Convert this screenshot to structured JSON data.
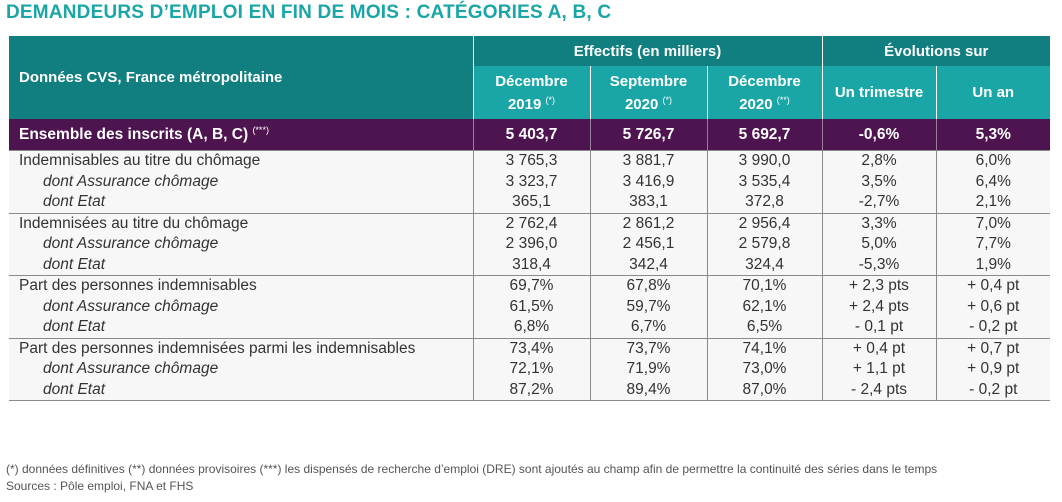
{
  "title": "DEMANDEURS D’EMPLOI EN FIN DE MOIS : CATÉGORIES A, B, C",
  "header": {
    "row_label": "Données CVS, France métropolitaine",
    "group1": "Effectifs (en milliers)",
    "group2": "Évolutions sur",
    "cols": [
      {
        "line1": "Décembre",
        "line2": "2019",
        "sup": "(*)"
      },
      {
        "line1": "Septembre",
        "line2": "2020",
        "sup": "(*)"
      },
      {
        "line1": "Décembre",
        "line2": "2020",
        "sup": "(**)"
      },
      {
        "line1": "Un trimestre",
        "line2": "",
        "sup": ""
      },
      {
        "line1": "Un an",
        "line2": "",
        "sup": ""
      }
    ]
  },
  "ensemble": {
    "label": "Ensemble des inscrits (A, B, C)",
    "sup": "(***)",
    "values": [
      "5 403,7",
      "5 726,7",
      "5 692,7",
      "-0,6%",
      "5,3%"
    ]
  },
  "groups": [
    {
      "rows": [
        {
          "label": "Indemnisables au titre du chômage",
          "values": [
            "3 765,3",
            "3 881,7",
            "3 990,0",
            "2,8%",
            "6,0%"
          ]
        },
        {
          "label": "dont Assurance chômage",
          "values": [
            "3 323,7",
            "3 416,9",
            "3 535,4",
            "3,5%",
            "6,4%"
          ]
        },
        {
          "label": "dont Etat",
          "values": [
            "365,1",
            "383,1",
            "372,8",
            "-2,7%",
            "2,1%"
          ]
        }
      ]
    },
    {
      "rows": [
        {
          "label": "Indemnisées au titre du chômage",
          "values": [
            "2 762,4",
            "2 861,2",
            "2 956,4",
            "3,3%",
            "7,0%"
          ]
        },
        {
          "label": "dont Assurance chômage",
          "values": [
            "2 396,0",
            "2 456,1",
            "2 579,8",
            "5,0%",
            "7,7%"
          ]
        },
        {
          "label": "dont Etat",
          "values": [
            "318,4",
            "342,4",
            "324,4",
            "-5,3%",
            "1,9%"
          ]
        }
      ]
    },
    {
      "rows": [
        {
          "label": "Part des personnes indemnisables",
          "values": [
            "69,7%",
            "67,8%",
            "70,1%",
            "+ 2,3 pts",
            "+ 0,4 pt"
          ]
        },
        {
          "label": "dont Assurance chômage",
          "values": [
            "61,5%",
            "59,7%",
            "62,1%",
            "+ 2,4 pts",
            "+ 0,6 pt"
          ]
        },
        {
          "label": "dont Etat",
          "values": [
            "6,8%",
            "6,7%",
            "6,5%",
            "- 0,1 pt",
            "- 0,2 pt"
          ]
        }
      ]
    },
    {
      "rows": [
        {
          "label": "Part des personnes indemnisées parmi les indemnisables",
          "values": [
            "73,4%",
            "73,7%",
            "74,1%",
            "+ 0,4 pt",
            "+ 0,7 pt"
          ]
        },
        {
          "label": "dont Assurance chômage",
          "values": [
            "72,1%",
            "71,9%",
            "73,0%",
            "+ 1,1 pt",
            "+ 0,9 pt"
          ]
        },
        {
          "label": "dont Etat",
          "values": [
            "87,2%",
            "89,4%",
            "87,0%",
            "- 2,4 pts",
            "- 0,2 pt"
          ]
        }
      ]
    }
  ],
  "footnote": {
    "line1": "(*) données définitives (**) données provisoires (***) les dispensés de recherche d’emploi (DRE) sont ajoutés au champ afin de permettre la continuité des séries dans le temps",
    "line2": "Sources : Pôle emploi, FNA et FHS"
  },
  "colors": {
    "title": "#1aa6a6",
    "header_dark": "#117f7f",
    "header_light": "#1aa6a6",
    "ensemble_row": "#4e1450"
  }
}
